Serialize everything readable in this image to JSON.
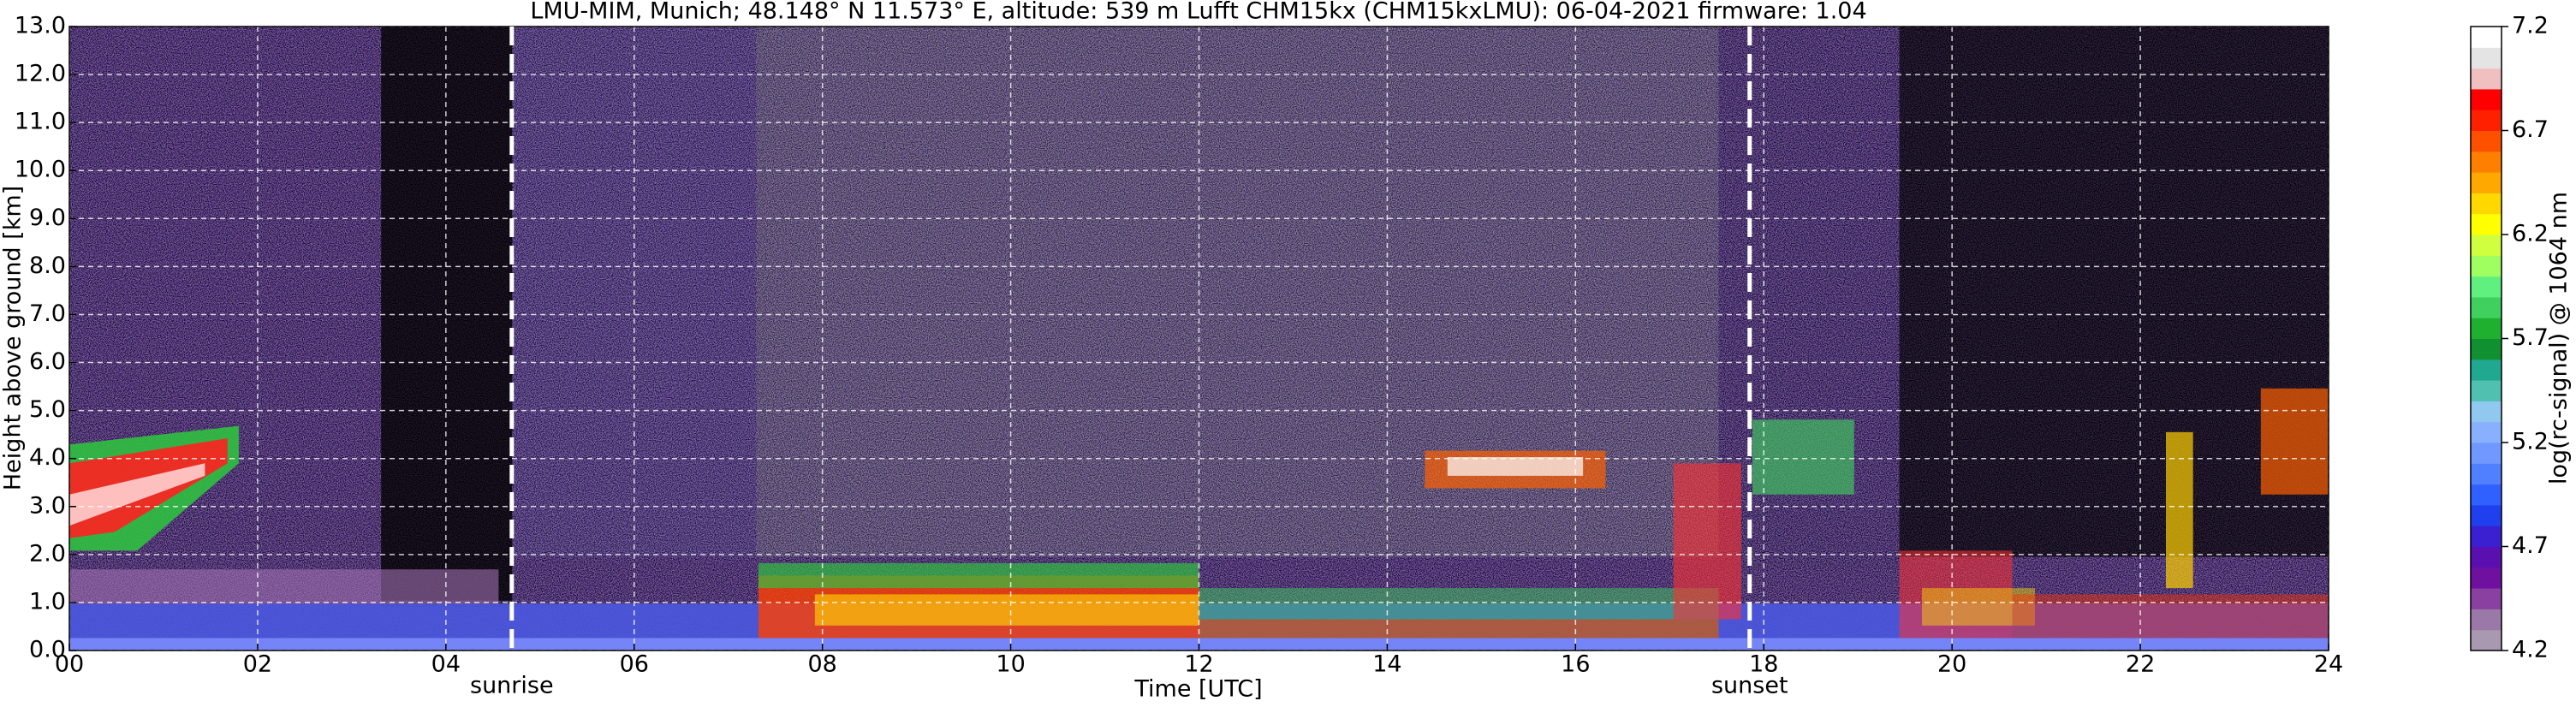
{
  "chart_data": {
    "type": "heatmap",
    "title": "LMU-MIM, Munich; 48.148° N 11.573° E, altitude: 539 m    Lufft CHM15kx (CHM15kxLMU): 06-04-2021    firmware: 1.04",
    "xlabel": "Time [UTC]",
    "ylabel": "Height above ground [km]",
    "xlim": [
      0,
      24
    ],
    "xticks": [
      {
        "value": 0,
        "label": "00"
      },
      {
        "value": 2,
        "label": "02"
      },
      {
        "value": 4,
        "label": "04"
      },
      {
        "value": 6,
        "label": "06"
      },
      {
        "value": 8,
        "label": "08"
      },
      {
        "value": 10,
        "label": "10"
      },
      {
        "value": 12,
        "label": "12"
      },
      {
        "value": 14,
        "label": "14"
      },
      {
        "value": 16,
        "label": "16"
      },
      {
        "value": 18,
        "label": "18"
      },
      {
        "value": 20,
        "label": "20"
      },
      {
        "value": 22,
        "label": "22"
      },
      {
        "value": 24,
        "label": "24"
      }
    ],
    "ylim": [
      0,
      13
    ],
    "yticks": [
      {
        "value": 0,
        "label": "0.0"
      },
      {
        "value": 1,
        "label": "1.0"
      },
      {
        "value": 2,
        "label": "2.0"
      },
      {
        "value": 3,
        "label": "3.0"
      },
      {
        "value": 4,
        "label": "4.0"
      },
      {
        "value": 5,
        "label": "5.0"
      },
      {
        "value": 6,
        "label": "6.0"
      },
      {
        "value": 7,
        "label": "7.0"
      },
      {
        "value": 8,
        "label": "8.0"
      },
      {
        "value": 9,
        "label": "9.0"
      },
      {
        "value": 10,
        "label": "10.0"
      },
      {
        "value": 11,
        "label": "11.0"
      },
      {
        "value": 12,
        "label": "12.0"
      },
      {
        "value": 13,
        "label": "13.0"
      }
    ],
    "grid": true,
    "annotations": [
      {
        "x": 4.7,
        "label": "sunrise"
      },
      {
        "x": 17.85,
        "label": "sunset"
      }
    ],
    "colorbar": {
      "label": "log(rc-signal) @ 1064 nm",
      "lim": [
        4.2,
        7.2
      ],
      "ticks": [
        4.2,
        4.7,
        5.2,
        5.7,
        6.2,
        6.7,
        7.2
      ],
      "colors": [
        "#a898b0",
        "#9a78a8",
        "#8a40a0",
        "#7010a0",
        "#5a10b0",
        "#3a20d0",
        "#2040f0",
        "#3060ff",
        "#5080ff",
        "#7098ff",
        "#88b0ff",
        "#90c8f0",
        "#50c0b0",
        "#20a890",
        "#109030",
        "#20b030",
        "#40d060",
        "#60f080",
        "#a0ff60",
        "#d0ff40",
        "#ffff00",
        "#ffd800",
        "#ffa800",
        "#ff8000",
        "#ff5000",
        "#ff2000",
        "#ff0000",
        "#f0c0c0",
        "#e4e4e4",
        "#ffffff"
      ]
    }
  }
}
